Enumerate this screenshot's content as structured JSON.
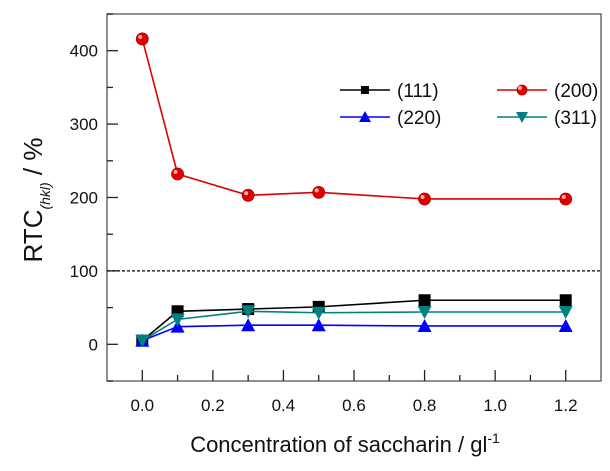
{
  "chart_data": {
    "type": "line",
    "title": "",
    "xlabel": "Concentration of saccharin / gl",
    "xlabel_sup": "-1",
    "ylabel": "RTC",
    "ylabel_sub": "(hkl)",
    "ylabel_unit": " / %",
    "xlim": [
      -0.1,
      1.3
    ],
    "ylim": [
      -50,
      450
    ],
    "xticks": [
      "0.0",
      "0.2",
      "0.4",
      "0.6",
      "0.8",
      "1.0",
      "1.2"
    ],
    "yticks": [
      "0",
      "100",
      "200",
      "300",
      "400"
    ],
    "grid": false,
    "reference_line": {
      "y": 100,
      "style": "dotted",
      "color": "#000000"
    },
    "legend_position": "top-right",
    "x": [
      0.0,
      0.1,
      0.3,
      0.5,
      0.8,
      1.2
    ],
    "series": [
      {
        "name": "(111)",
        "color": "#000000",
        "marker": "square",
        "values": [
          5,
          45,
          48,
          51,
          60,
          60
        ]
      },
      {
        "name": "(200)",
        "color": "#e00000",
        "marker": "circle",
        "values": [
          416,
          232,
          203,
          207,
          198,
          198
        ]
      },
      {
        "name": "(220)",
        "color": "#0000ff",
        "marker": "triangle-up",
        "values": [
          5,
          24,
          26,
          26,
          25,
          25
        ]
      },
      {
        "name": "(311)",
        "color": "#008080",
        "marker": "triangle-down",
        "values": [
          5,
          34,
          45,
          43,
          44,
          44
        ]
      }
    ]
  }
}
